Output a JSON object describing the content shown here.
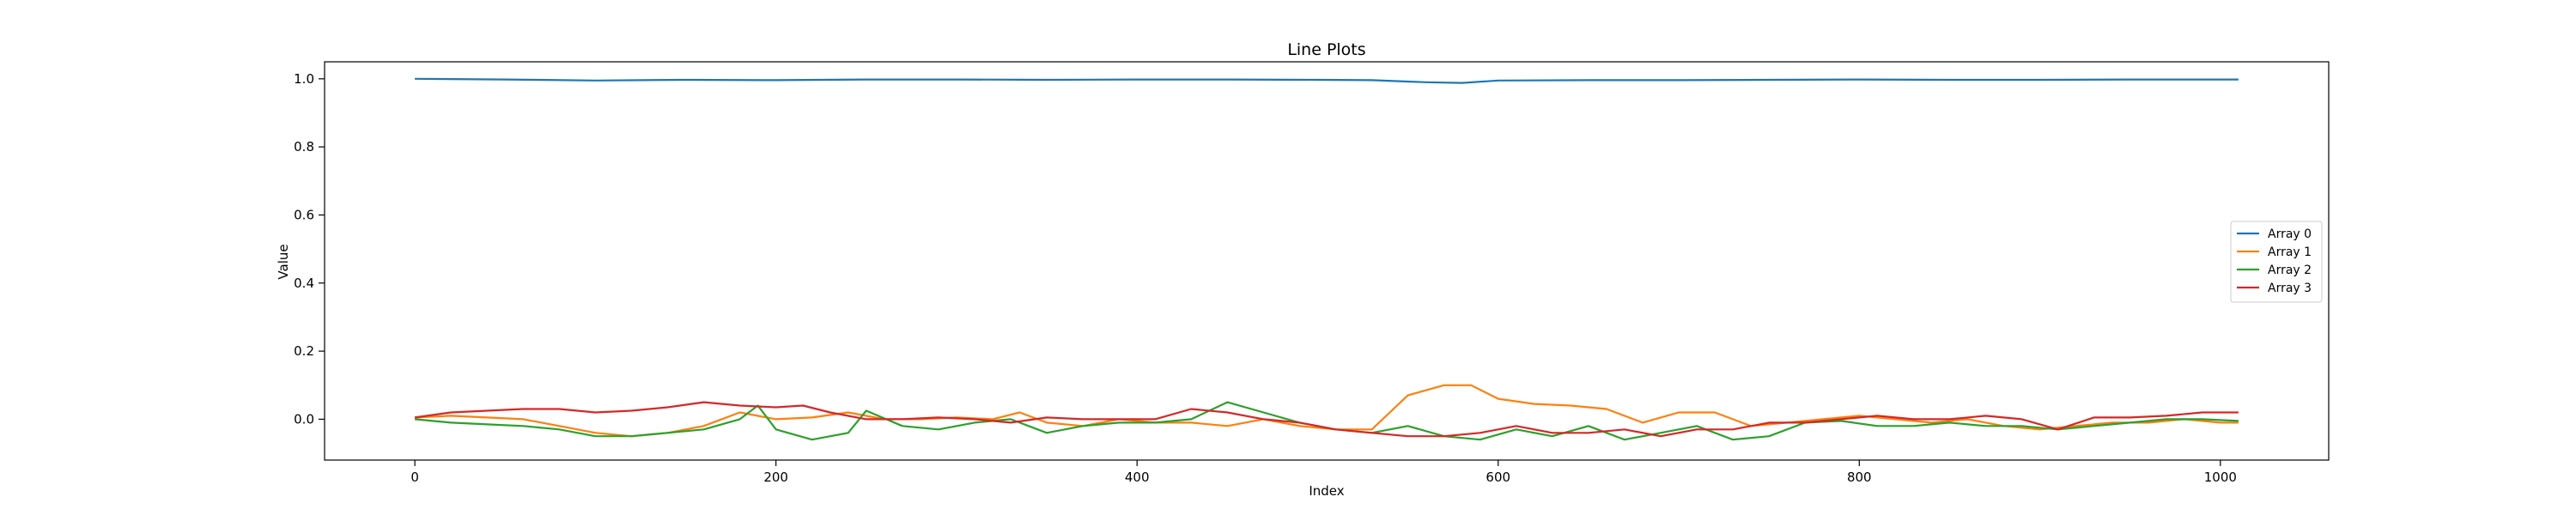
{
  "chart_data": {
    "type": "line",
    "title": "Line Plots",
    "xlabel": "Index",
    "ylabel": "Value",
    "xlim": [
      -50,
      1060
    ],
    "ylim": [
      -0.12,
      1.05
    ],
    "x_ticks": [
      0,
      200,
      400,
      600,
      800,
      1000
    ],
    "y_ticks": [
      0.0,
      0.2,
      0.4,
      0.6,
      0.8,
      1.0
    ],
    "x_tick_labels": [
      "0",
      "200",
      "400",
      "600",
      "800",
      "1000"
    ],
    "y_tick_labels": [
      "0.0",
      "0.2",
      "0.4",
      "0.6",
      "0.8",
      "1.0"
    ],
    "grid": false,
    "legend_position": "center-right",
    "series": [
      {
        "name": "Array 0",
        "color": "#1f77b4",
        "x": [
          0,
          50,
          100,
          150,
          200,
          250,
          300,
          350,
          400,
          450,
          500,
          530,
          560,
          580,
          600,
          650,
          700,
          750,
          800,
          850,
          900,
          950,
          1000,
          1010
        ],
        "values": [
          1.0,
          0.998,
          0.995,
          0.997,
          0.996,
          0.998,
          0.998,
          0.997,
          0.998,
          0.998,
          0.997,
          0.996,
          0.99,
          0.988,
          0.995,
          0.996,
          0.996,
          0.997,
          0.998,
          0.997,
          0.997,
          0.998,
          0.998,
          0.998
        ]
      },
      {
        "name": "Array 1",
        "color": "#ff7f0e",
        "x": [
          0,
          20,
          40,
          60,
          80,
          100,
          120,
          140,
          160,
          180,
          200,
          220,
          240,
          260,
          280,
          300,
          320,
          335,
          350,
          370,
          390,
          410,
          430,
          450,
          470,
          490,
          510,
          530,
          540,
          550,
          570,
          585,
          600,
          620,
          640,
          660,
          680,
          700,
          720,
          740,
          760,
          780,
          800,
          820,
          840,
          860,
          880,
          900,
          920,
          940,
          960,
          980,
          1000,
          1010
        ],
        "values": [
          0.005,
          0.01,
          0.005,
          0.0,
          -0.02,
          -0.04,
          -0.05,
          -0.04,
          -0.02,
          0.02,
          0.0,
          0.005,
          0.02,
          0.0,
          0.0,
          0.005,
          0.0,
          0.02,
          -0.01,
          -0.02,
          0.0,
          -0.01,
          -0.01,
          -0.02,
          0.0,
          -0.02,
          -0.03,
          -0.03,
          0.02,
          0.07,
          0.1,
          0.1,
          0.06,
          0.045,
          0.04,
          0.03,
          -0.01,
          0.02,
          0.02,
          -0.02,
          -0.01,
          0.0,
          0.01,
          0.0,
          -0.01,
          0.0,
          -0.02,
          -0.03,
          -0.02,
          -0.01,
          -0.01,
          0.0,
          -0.01,
          -0.01
        ]
      },
      {
        "name": "Array 2",
        "color": "#2ca02c",
        "x": [
          0,
          20,
          40,
          60,
          80,
          100,
          120,
          140,
          160,
          180,
          190,
          200,
          220,
          240,
          250,
          270,
          290,
          310,
          330,
          350,
          370,
          390,
          410,
          430,
          450,
          470,
          490,
          510,
          530,
          550,
          570,
          590,
          610,
          630,
          650,
          670,
          690,
          710,
          730,
          750,
          770,
          790,
          810,
          830,
          850,
          870,
          890,
          910,
          930,
          950,
          970,
          990,
          1010
        ],
        "values": [
          0.0,
          -0.01,
          -0.015,
          -0.02,
          -0.03,
          -0.05,
          -0.05,
          -0.04,
          -0.03,
          0.0,
          0.04,
          -0.03,
          -0.06,
          -0.04,
          0.025,
          -0.02,
          -0.03,
          -0.01,
          0.0,
          -0.04,
          -0.02,
          -0.01,
          -0.01,
          0.0,
          0.05,
          0.02,
          -0.01,
          -0.03,
          -0.04,
          -0.02,
          -0.05,
          -0.06,
          -0.03,
          -0.05,
          -0.02,
          -0.06,
          -0.04,
          -0.02,
          -0.06,
          -0.05,
          -0.01,
          -0.005,
          -0.02,
          -0.02,
          -0.01,
          -0.02,
          -0.02,
          -0.03,
          -0.02,
          -0.01,
          0.0,
          0.0,
          -0.005
        ]
      },
      {
        "name": "Array 3",
        "color": "#d62728",
        "x": [
          0,
          20,
          40,
          60,
          80,
          100,
          120,
          140,
          160,
          180,
          200,
          215,
          230,
          250,
          270,
          290,
          310,
          330,
          350,
          370,
          390,
          410,
          430,
          450,
          470,
          490,
          510,
          530,
          550,
          570,
          590,
          610,
          630,
          650,
          670,
          690,
          710,
          730,
          750,
          770,
          790,
          810,
          830,
          850,
          870,
          890,
          910,
          930,
          950,
          970,
          990,
          1010
        ],
        "values": [
          0.005,
          0.02,
          0.025,
          0.03,
          0.03,
          0.02,
          0.025,
          0.035,
          0.05,
          0.04,
          0.035,
          0.04,
          0.02,
          0.0,
          0.0,
          0.005,
          0.0,
          -0.01,
          0.005,
          0.0,
          0.0,
          0.0,
          0.03,
          0.02,
          0.0,
          -0.01,
          -0.03,
          -0.04,
          -0.05,
          -0.05,
          -0.04,
          -0.02,
          -0.04,
          -0.04,
          -0.03,
          -0.05,
          -0.03,
          -0.03,
          -0.01,
          -0.01,
          0.0,
          0.01,
          0.0,
          0.0,
          0.01,
          0.0,
          -0.03,
          0.005,
          0.005,
          0.01,
          0.02,
          0.02
        ]
      }
    ]
  }
}
